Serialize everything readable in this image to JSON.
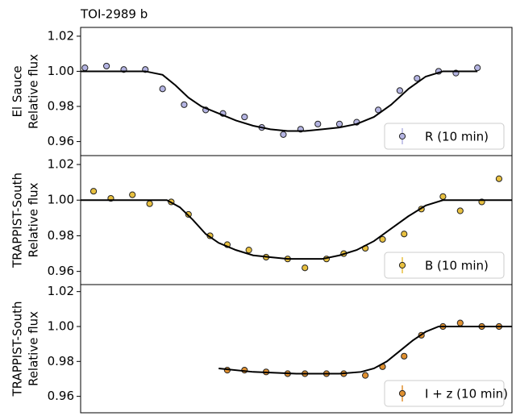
{
  "chart_data": [
    {
      "type": "scatter",
      "title": "TOI-2989 b",
      "ylabel": [
        "El Sauce",
        "Relative flux"
      ],
      "xlim": [
        0,
        100
      ],
      "ylim": [
        0.952,
        1.025
      ],
      "yticks": [
        0.96,
        0.98,
        {
          "value": 1.0,
          "label": "1.00"
        },
        1.02
      ],
      "series": [
        {
          "name": "R (10 min)",
          "color": "#b4b4e2",
          "x": [
            1,
            6,
            10,
            15,
            19,
            24,
            29,
            33,
            38,
            42,
            47,
            51,
            55,
            60,
            64,
            69,
            74,
            78,
            83,
            87,
            92
          ],
          "values": [
            1.002,
            1.003,
            1.001,
            1.001,
            0.99,
            0.981,
            0.978,
            0.976,
            0.974,
            0.968,
            0.964,
            0.967,
            0.97,
            0.97,
            0.971,
            0.978,
            0.989,
            0.996,
            1.0,
            0.999,
            1.002
          ]
        }
      ],
      "model": {
        "color": "#000000",
        "x": [
          0,
          15,
          19,
          22,
          25,
          28,
          32,
          36,
          40,
          44,
          48,
          52,
          56,
          60,
          64,
          68,
          72,
          76,
          80,
          84,
          88,
          92
        ],
        "values": [
          1.0,
          1.0,
          0.998,
          0.992,
          0.985,
          0.98,
          0.976,
          0.972,
          0.969,
          0.967,
          0.966,
          0.966,
          0.967,
          0.968,
          0.97,
          0.974,
          0.981,
          0.99,
          0.997,
          1.0,
          1.0,
          1.0
        ]
      }
    },
    {
      "type": "scatter",
      "ylabel": [
        "TRAPPIST-South",
        "Relative flux"
      ],
      "xlim": [
        0,
        100
      ],
      "ylim": [
        0.9526,
        1.025
      ],
      "yticks": [
        0.96,
        0.98,
        {
          "value": 1.0,
          "label": "1.00"
        },
        1.02
      ],
      "series": [
        {
          "name": "B (10 min)",
          "color": "#e8c040",
          "x": [
            3,
            7,
            12,
            16,
            21,
            25,
            30,
            34,
            39,
            43,
            48,
            52,
            57,
            61,
            66,
            70,
            75,
            79,
            84,
            88,
            93,
            97
          ],
          "values": [
            1.005,
            1.001,
            1.003,
            0.998,
            0.999,
            0.992,
            0.98,
            0.975,
            0.972,
            0.968,
            0.967,
            0.962,
            0.967,
            0.97,
            0.973,
            0.978,
            0.981,
            0.995,
            1.002,
            0.994,
            0.999,
            1.012
          ]
        }
      ],
      "model": {
        "color": "#000000",
        "x": [
          0,
          20,
          23,
          26,
          29,
          32,
          36,
          40,
          44,
          48,
          52,
          56,
          60,
          64,
          68,
          72,
          76,
          80,
          84,
          100
        ],
        "values": [
          1.0,
          1.0,
          0.996,
          0.989,
          0.981,
          0.976,
          0.972,
          0.969,
          0.968,
          0.967,
          0.967,
          0.967,
          0.969,
          0.972,
          0.977,
          0.984,
          0.991,
          0.997,
          1.0,
          1.0
        ]
      }
    },
    {
      "type": "scatter",
      "ylabel": [
        "TRAPPIST-South",
        "Relative flux"
      ],
      "xlim": [
        0,
        100
      ],
      "ylim": [
        0.9506,
        1.024
      ],
      "yticks": [
        0.96,
        0.98,
        {
          "value": 1.0,
          "label": "1.00"
        },
        1.02
      ],
      "series": [
        {
          "name": "I + z (10 min)",
          "color": "#e09030",
          "x": [
            34,
            38,
            43,
            48,
            52,
            57,
            61,
            66,
            70,
            75,
            79,
            84,
            88,
            93,
            97
          ],
          "values": [
            0.975,
            0.975,
            0.974,
            0.973,
            0.973,
            0.973,
            0.973,
            0.972,
            0.977,
            0.983,
            0.995,
            1.0,
            1.002,
            1.0,
            1.0
          ]
        }
      ],
      "model": {
        "color": "#000000",
        "x": [
          32,
          40,
          50,
          60,
          65,
          68,
          71,
          74,
          77,
          80,
          83,
          100
        ],
        "values": [
          0.976,
          0.974,
          0.973,
          0.973,
          0.974,
          0.976,
          0.98,
          0.986,
          0.992,
          0.997,
          1.0,
          1.0
        ]
      }
    }
  ]
}
